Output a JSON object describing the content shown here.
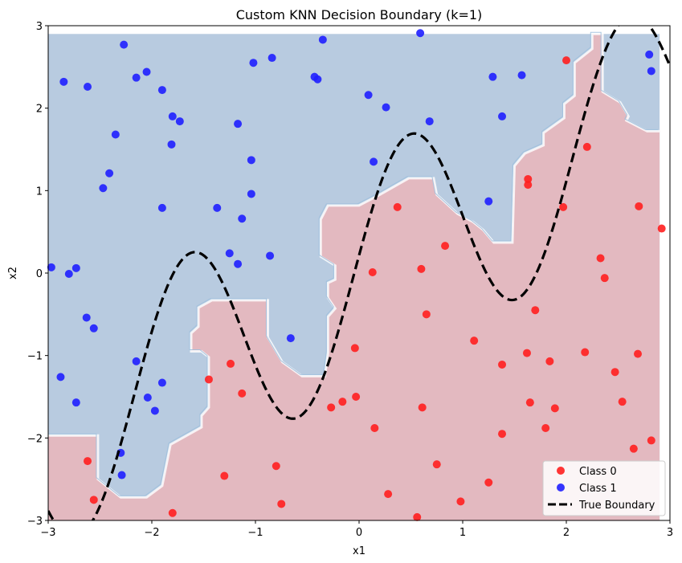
{
  "chart_data": {
    "type": "scatter",
    "title": "Custom KNN Decision Boundary (k=1)",
    "xlabel": "x1",
    "ylabel": "x2",
    "xlim": [
      -3,
      3
    ],
    "ylim": [
      -3,
      3
    ],
    "xticks": [
      -3,
      -2,
      -1,
      0,
      1,
      2,
      3
    ],
    "yticks": [
      -3,
      -2,
      -1,
      0,
      1,
      2,
      3
    ],
    "xtick_labels": [
      "−3",
      "−2",
      "−1",
      "0",
      "1",
      "2",
      "3"
    ],
    "ytick_labels": [
      "−3",
      "−2",
      "−1",
      "0",
      "1",
      "2",
      "3"
    ],
    "grid": false,
    "legend_position": "bottom-right",
    "colors": {
      "class0": "#ff1f1f",
      "class1": "#1f1fff",
      "region0": "#e3b9c0",
      "region1": "#b8cbe0",
      "boundary": "#000000"
    },
    "series": [
      {
        "name": "Class 0",
        "points": [
          [
            2.0,
            2.58
          ],
          [
            2.2,
            1.53
          ],
          [
            1.63,
            1.14
          ],
          [
            1.63,
            1.07
          ],
          [
            1.97,
            0.8
          ],
          [
            2.7,
            0.81
          ],
          [
            2.92,
            0.54
          ],
          [
            0.37,
            0.8
          ],
          [
            0.83,
            0.33
          ],
          [
            2.33,
            0.18
          ],
          [
            2.37,
            -0.06
          ],
          [
            0.13,
            0.01
          ],
          [
            0.6,
            0.05
          ],
          [
            0.65,
            -0.5
          ],
          [
            1.7,
            -0.45
          ],
          [
            1.11,
            -0.82
          ],
          [
            -0.04,
            -0.91
          ],
          [
            1.62,
            -0.97
          ],
          [
            2.18,
            -0.96
          ],
          [
            2.69,
            -0.98
          ],
          [
            1.38,
            -1.11
          ],
          [
            1.84,
            -1.07
          ],
          [
            2.47,
            -1.2
          ],
          [
            -1.45,
            -1.29
          ],
          [
            -1.24,
            -1.1
          ],
          [
            -1.13,
            -1.46
          ],
          [
            -0.16,
            -1.56
          ],
          [
            -0.03,
            -1.5
          ],
          [
            -0.27,
            -1.63
          ],
          [
            1.65,
            -1.57
          ],
          [
            2.54,
            -1.56
          ],
          [
            1.89,
            -1.64
          ],
          [
            0.61,
            -1.63
          ],
          [
            0.15,
            -1.88
          ],
          [
            1.38,
            -1.95
          ],
          [
            1.8,
            -1.88
          ],
          [
            2.65,
            -2.13
          ],
          [
            2.82,
            -2.03
          ],
          [
            -2.62,
            -2.28
          ],
          [
            -0.8,
            -2.34
          ],
          [
            0.75,
            -2.32
          ],
          [
            -1.3,
            -2.46
          ],
          [
            1.25,
            -2.54
          ],
          [
            -2.56,
            -2.75
          ],
          [
            -0.75,
            -2.8
          ],
          [
            0.28,
            -2.68
          ],
          [
            0.98,
            -2.77
          ],
          [
            -1.8,
            -2.91
          ],
          [
            0.56,
            -2.96
          ]
        ]
      },
      {
        "name": "Class 1",
        "points": [
          [
            -2.27,
            2.77
          ],
          [
            -0.35,
            2.83
          ],
          [
            0.59,
            2.91
          ],
          [
            -2.15,
            2.37
          ],
          [
            -2.05,
            2.44
          ],
          [
            -1.02,
            2.55
          ],
          [
            -0.84,
            2.61
          ],
          [
            -2.85,
            2.32
          ],
          [
            -2.62,
            2.26
          ],
          [
            -1.9,
            2.22
          ],
          [
            -0.43,
            2.38
          ],
          [
            -0.4,
            2.35
          ],
          [
            0.09,
            2.16
          ],
          [
            1.29,
            2.38
          ],
          [
            1.57,
            2.4
          ],
          [
            2.8,
            2.65
          ],
          [
            2.82,
            2.45
          ],
          [
            0.26,
            2.01
          ],
          [
            -1.8,
            1.9
          ],
          [
            -1.73,
            1.84
          ],
          [
            0.68,
            1.84
          ],
          [
            1.38,
            1.9
          ],
          [
            -1.17,
            1.81
          ],
          [
            -2.35,
            1.68
          ],
          [
            -1.81,
            1.56
          ],
          [
            -1.04,
            1.37
          ],
          [
            0.14,
            1.35
          ],
          [
            -2.41,
            1.21
          ],
          [
            -2.47,
            1.03
          ],
          [
            -1.04,
            0.96
          ],
          [
            1.25,
            0.87
          ],
          [
            -1.9,
            0.79
          ],
          [
            -1.37,
            0.79
          ],
          [
            -1.13,
            0.66
          ],
          [
            -1.25,
            0.24
          ],
          [
            -0.86,
            0.21
          ],
          [
            -1.17,
            0.11
          ],
          [
            -2.97,
            0.07
          ],
          [
            -2.73,
            0.06
          ],
          [
            -2.8,
            -0.01
          ],
          [
            -2.63,
            -0.54
          ],
          [
            -2.56,
            -0.67
          ],
          [
            -0.66,
            -0.79
          ],
          [
            -2.15,
            -1.07
          ],
          [
            -2.88,
            -1.26
          ],
          [
            -1.9,
            -1.33
          ],
          [
            -2.04,
            -1.51
          ],
          [
            -1.97,
            -1.67
          ],
          [
            -2.73,
            -1.57
          ],
          [
            -2.3,
            -2.18
          ],
          [
            -2.29,
            -2.45
          ]
        ]
      }
    ],
    "legend": [
      {
        "label": "Class 0",
        "marker": "dot-red"
      },
      {
        "label": "Class 1",
        "marker": "dot-blue"
      },
      {
        "label": "True Boundary",
        "marker": "dashed-line-black"
      }
    ],
    "boundary_vertices": [
      [
        -3,
        -1.97
      ],
      [
        -2.52,
        -1.97
      ],
      [
        -2.52,
        -2.5
      ],
      [
        -2.3,
        -2.72
      ],
      [
        -2.05,
        -2.72
      ],
      [
        -1.9,
        -2.58
      ],
      [
        -1.82,
        -2.08
      ],
      [
        -1.52,
        -1.87
      ],
      [
        -1.52,
        -1.73
      ],
      [
        -1.45,
        -1.63
      ],
      [
        -1.45,
        -1.02
      ],
      [
        -1.52,
        -0.95
      ],
      [
        -1.62,
        -0.95
      ],
      [
        -1.62,
        -0.73
      ],
      [
        -1.55,
        -0.65
      ],
      [
        -1.55,
        -0.42
      ],
      [
        -1.42,
        -0.33
      ],
      [
        -1.15,
        -0.33
      ],
      [
        -0.88,
        -0.33
      ],
      [
        -0.88,
        -0.78
      ],
      [
        -0.74,
        -1.08
      ],
      [
        -0.55,
        -1.25
      ],
      [
        -0.33,
        -1.25
      ],
      [
        -0.3,
        -0.97
      ],
      [
        -0.3,
        -0.53
      ],
      [
        -0.23,
        -0.43
      ],
      [
        -0.3,
        -0.3
      ],
      [
        -0.3,
        -0.12
      ],
      [
        -0.23,
        -0.08
      ],
      [
        -0.23,
        0.09
      ],
      [
        -0.37,
        0.2
      ],
      [
        -0.37,
        0.65
      ],
      [
        -0.3,
        0.82
      ],
      [
        0.0,
        0.82
      ],
      [
        0.2,
        0.95
      ],
      [
        0.48,
        1.15
      ],
      [
        0.72,
        1.15
      ],
      [
        0.75,
        0.95
      ],
      [
        0.95,
        0.72
      ],
      [
        1.1,
        0.62
      ],
      [
        1.2,
        0.52
      ],
      [
        1.3,
        0.37
      ],
      [
        1.48,
        0.37
      ],
      [
        1.5,
        1.3
      ],
      [
        1.6,
        1.45
      ],
      [
        1.78,
        1.55
      ],
      [
        1.78,
        1.7
      ],
      [
        1.98,
        1.88
      ],
      [
        1.98,
        2.05
      ],
      [
        2.08,
        2.15
      ],
      [
        2.08,
        2.55
      ],
      [
        2.25,
        2.72
      ],
      [
        2.25,
        2.9
      ],
      [
        2.35,
        2.9
      ],
      [
        2.35,
        2.2
      ],
      [
        2.52,
        2.07
      ],
      [
        2.6,
        1.9
      ],
      [
        2.58,
        1.85
      ],
      [
        2.78,
        1.72
      ],
      [
        2.9,
        1.72
      ]
    ]
  }
}
